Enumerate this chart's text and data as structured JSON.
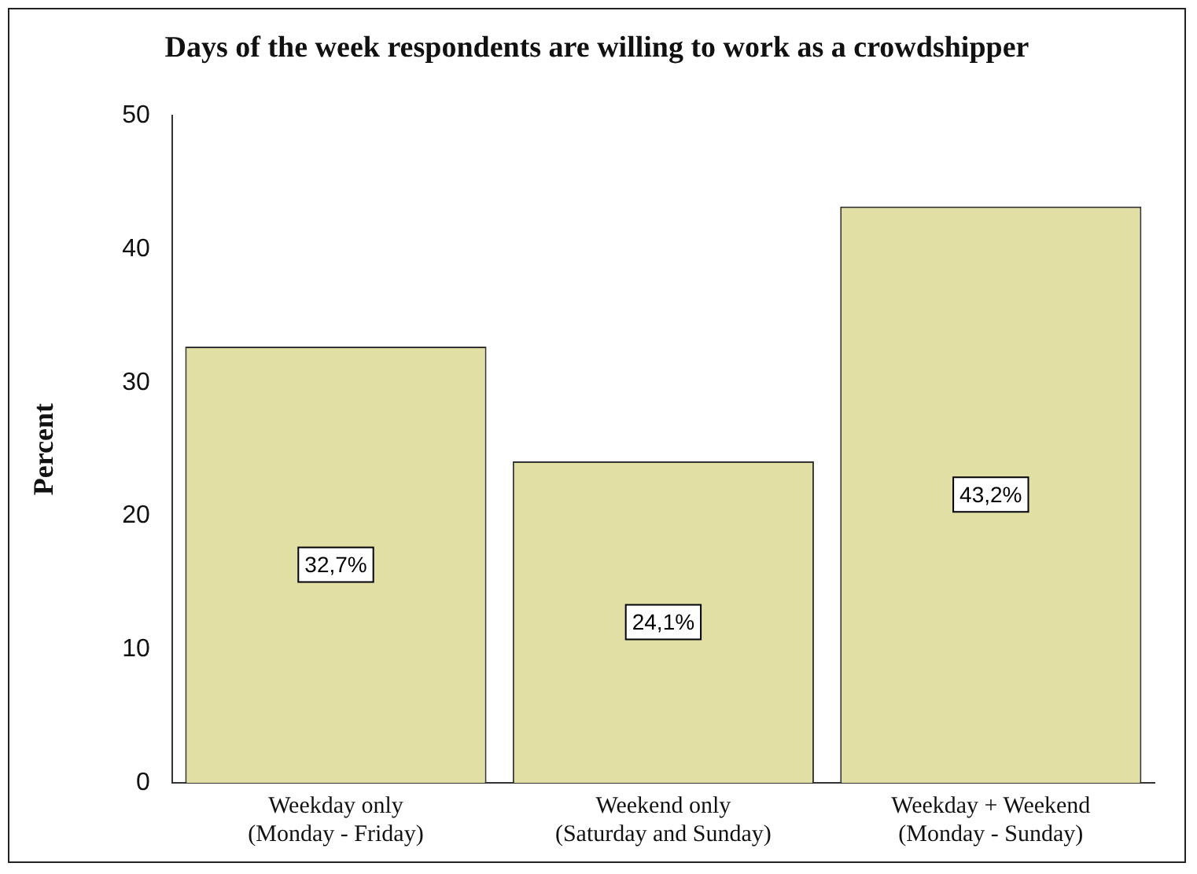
{
  "chart_data": {
    "type": "bar",
    "title": "Days of the week respondents are willing to work as a crowdshipper",
    "ylabel": "Percent",
    "categories": [
      "Weekday only\n(Monday - Friday)",
      "Weekend only\n(Saturday and Sunday)",
      "Weekday + Weekend\n(Monday - Sunday)"
    ],
    "values": [
      32.7,
      24.1,
      43.2
    ],
    "value_labels": [
      "32,7%",
      "24,1%",
      "43,2%"
    ],
    "color": "#e1dfa3",
    "ylim": [
      0,
      50
    ],
    "yticks": [
      0,
      10,
      20,
      30,
      40,
      50
    ],
    "grid": false,
    "legend": false
  }
}
